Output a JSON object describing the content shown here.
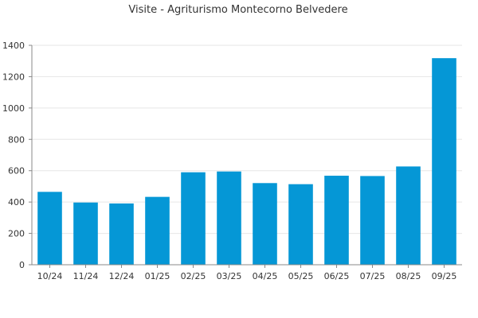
{
  "chart_data": {
    "type": "bar",
    "title": "Visite - Agriturismo Montecorno Belvedere",
    "xlabel": "",
    "ylabel": "",
    "categories": [
      "10/24",
      "11/24",
      "12/24",
      "01/25",
      "02/25",
      "03/25",
      "04/25",
      "05/25",
      "06/25",
      "07/25",
      "08/25",
      "09/25"
    ],
    "values": [
      465,
      397,
      391,
      433,
      590,
      595,
      521,
      514,
      568,
      566,
      627,
      1318
    ],
    "ylim": [
      0,
      1400
    ],
    "yticks": [
      0,
      200,
      400,
      600,
      800,
      1000,
      1200,
      1400
    ],
    "grid": true,
    "legend": "none",
    "bar_color": "#0597d6",
    "grid_color": "#e6e6e6",
    "axis_color": "#888888"
  }
}
